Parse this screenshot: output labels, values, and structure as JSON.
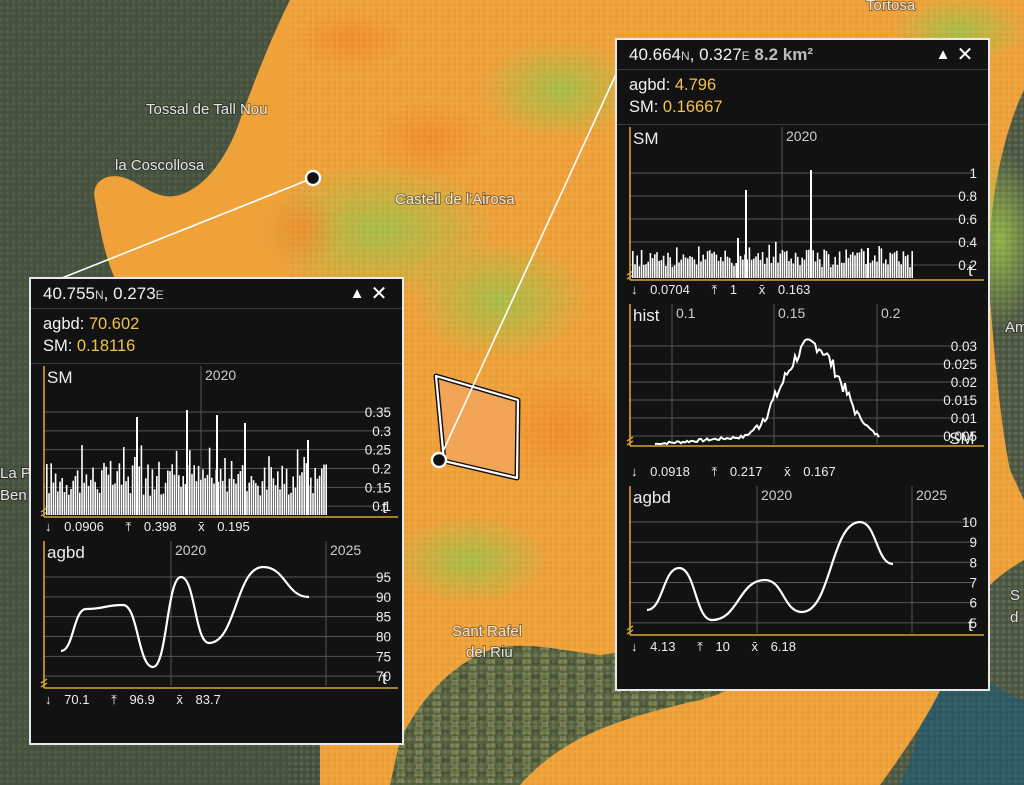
{
  "map": {
    "labels": {
      "tortosa": "Tortosa",
      "tossal": "Tossal de Tall Nou",
      "coscollosa": "la Coscollosa",
      "castell": "Castell de l'Airosa",
      "sant_rafel_1": "Sant Rafel",
      "sant_rafel_2": "del Riu",
      "edge_la_p": "La P",
      "edge_ben": "Ben",
      "edge_am": "Am",
      "edge_s": "S",
      "edge_d": "d"
    },
    "colors": {
      "orange": "#f0a23a",
      "green": "#a8c84a",
      "land": "#4e5c44"
    }
  },
  "popup_left": {
    "lat": "40.755",
    "lat_unit": "N",
    "sep": ", ",
    "lon": "0.273",
    "lon_unit": "E",
    "collapse_icon": "▲",
    "close_icon": "✕",
    "agbd_label": "agbd: ",
    "agbd_value": "70.602",
    "sm_label": "SM: ",
    "sm_value": "0.18116",
    "sm_panel": {
      "title": "SM",
      "year_label": "2020",
      "t_label": "t",
      "y_ticks": [
        "0.35",
        "0.3",
        "0.25",
        "0.2",
        "0.15",
        "0.1"
      ],
      "stat_min": "0.0906",
      "stat_max": "0.398",
      "stat_mean": "0.195"
    },
    "agbd_panel": {
      "title": "agbd",
      "year_labels": [
        "2020",
        "2025"
      ],
      "t_label": "t",
      "y_ticks": [
        "95",
        "90",
        "85",
        "80",
        "75",
        "70"
      ],
      "stat_min": "70.1",
      "stat_max": "96.9",
      "stat_mean": "83.7"
    }
  },
  "popup_right": {
    "lat": "40.664",
    "lat_unit": "N",
    "sep": ", ",
    "lon": "0.327",
    "lon_unit": "E",
    "area": "8.2 km²",
    "collapse_icon": "▲",
    "close_icon": "✕",
    "agbd_label": "agbd: ",
    "agbd_value": "4.796",
    "sm_label": "SM: ",
    "sm_value": "0.16667",
    "sm_panel": {
      "title": "SM",
      "year_label": "2020",
      "t_label": "t",
      "y_ticks": [
        "1",
        "0.8",
        "0.6",
        "0.4",
        "0.2"
      ],
      "stat_min": "0.0704",
      "stat_max": "1",
      "stat_mean": "0.163"
    },
    "hist_panel": {
      "title": "hist",
      "x_ticks": [
        "0.1",
        "0.15",
        "0.2"
      ],
      "y_ticks": [
        "0.03",
        "0.025",
        "0.02",
        "0.015",
        "0.01",
        "0.005"
      ],
      "x_label": "SM",
      "stat_min": "0.0918",
      "stat_max": "0.217",
      "stat_mean": "0.167"
    },
    "agbd_panel": {
      "title": "agbd",
      "year_labels": [
        "2020",
        "2025"
      ],
      "t_label": "t",
      "y_ticks": [
        "10",
        "9",
        "8",
        "7",
        "6",
        "5"
      ],
      "stat_min": "4.13",
      "stat_max": "10",
      "stat_mean": "6.18"
    }
  },
  "stat_symbols": {
    "min": "↓",
    "max": "⤒",
    "mean": "x̄"
  }
}
